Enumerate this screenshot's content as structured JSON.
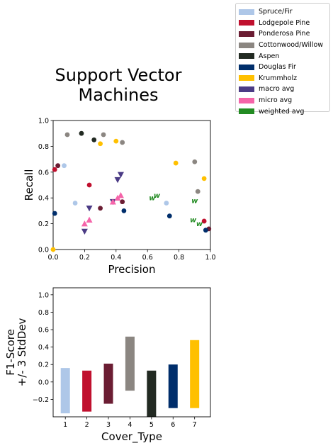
{
  "title_lines": [
    "Support Vector",
    "Machines"
  ],
  "colors": {
    "Spruce/Fir": "#aec7e8",
    "Lodgepole Pine": "#c0102e",
    "Ponderosa Pine": "#6b1d33",
    "Cottonwood/Willow": "#8b8681",
    "Aspen": "#222a22",
    "Douglas Fir": "#002e6b",
    "Krummholz": "#ffc000",
    "macro avg": "#4b3b85",
    "micro avg": "#f564a9",
    "weighted avg": "#228b22"
  },
  "legend": {
    "location": "upper-right-outside",
    "entries": [
      "Spruce/Fir",
      "Lodgepole Pine",
      "Ponderosa Pine",
      "Cottonwood/Willow",
      "Aspen",
      "Douglas Fir",
      "Krummholz",
      "macro avg",
      "micro avg",
      "weighted avg"
    ]
  },
  "chart_data": [
    {
      "type": "scatter",
      "xlabel": "Precision",
      "ylabel": "Recall",
      "xlim": [
        0,
        1
      ],
      "ylim": [
        0,
        1
      ],
      "xticks": [
        "0.0",
        "0.2",
        "0.4",
        "0.6",
        "0.8",
        "1.0"
      ],
      "yticks": [
        "0.0",
        "0.2",
        "0.4",
        "0.6",
        "0.8",
        "1.0"
      ],
      "grid": false,
      "series": [
        {
          "name": "Spruce/Fir",
          "marker": "circle",
          "points": [
            [
              0.07,
              0.65
            ],
            [
              0.14,
              0.36
            ],
            [
              0.72,
              0.36
            ]
          ]
        },
        {
          "name": "Lodgepole Pine",
          "marker": "circle",
          "points": [
            [
              0.01,
              0.62
            ],
            [
              0.23,
              0.5
            ],
            [
              0.96,
              0.22
            ]
          ]
        },
        {
          "name": "Ponderosa Pine",
          "marker": "circle",
          "points": [
            [
              0.03,
              0.65
            ],
            [
              0.3,
              0.32
            ],
            [
              0.44,
              0.37
            ],
            [
              0.99,
              0.16
            ]
          ]
        },
        {
          "name": "Cottonwood/Willow",
          "marker": "circle",
          "points": [
            [
              0.09,
              0.89
            ],
            [
              0.32,
              0.89
            ],
            [
              0.44,
              0.83
            ],
            [
              0.9,
              0.68
            ],
            [
              0.92,
              0.45
            ]
          ]
        },
        {
          "name": "Aspen",
          "marker": "circle",
          "points": [
            [
              0.18,
              0.9
            ],
            [
              0.26,
              0.85
            ]
          ]
        },
        {
          "name": "Douglas Fir",
          "marker": "circle",
          "points": [
            [
              0.01,
              0.28
            ],
            [
              0.45,
              0.3
            ],
            [
              0.74,
              0.26
            ],
            [
              0.97,
              0.15
            ]
          ]
        },
        {
          "name": "Krummholz",
          "marker": "circle",
          "points": [
            [
              0.0,
              0.0
            ],
            [
              0.3,
              0.82
            ],
            [
              0.4,
              0.84
            ],
            [
              0.78,
              0.67
            ],
            [
              0.96,
              0.55
            ]
          ]
        },
        {
          "name": "macro avg",
          "marker": "triangle-down",
          "points": [
            [
              0.2,
              0.14
            ],
            [
              0.23,
              0.32
            ],
            [
              0.38,
              0.37
            ],
            [
              0.41,
              0.54
            ],
            [
              0.43,
              0.58
            ]
          ]
        },
        {
          "name": "micro avg",
          "marker": "triangle-up",
          "points": [
            [
              0.2,
              0.2
            ],
            [
              0.23,
              0.23
            ],
            [
              0.38,
              0.37
            ],
            [
              0.41,
              0.4
            ],
            [
              0.43,
              0.42
            ]
          ]
        },
        {
          "name": "weighted avg",
          "marker": "w",
          "points": [
            [
              0.63,
              0.4
            ],
            [
              0.66,
              0.42
            ],
            [
              0.9,
              0.38
            ],
            [
              0.89,
              0.23
            ],
            [
              0.93,
              0.2
            ]
          ]
        }
      ]
    },
    {
      "type": "bar",
      "xlabel": "Cover_Type",
      "ylabel_lines": [
        "F1-Score",
        "+/- 3 StdDev"
      ],
      "categories": [
        "1",
        "2",
        "3",
        "4",
        "5",
        "6",
        "7"
      ],
      "bottoms": [
        -0.36,
        -0.34,
        -0.25,
        -0.1,
        -0.4,
        -0.3,
        -0.3
      ],
      "tops": [
        0.16,
        0.13,
        0.21,
        0.52,
        0.13,
        0.2,
        0.48
      ],
      "colors_by_category": [
        "Spruce/Fir",
        "Lodgepole Pine",
        "Ponderosa Pine",
        "Cottonwood/Willow",
        "Aspen",
        "Douglas Fir",
        "Krummholz"
      ],
      "ylim": [
        -0.4,
        1.08
      ],
      "yticks": [
        "−0.2",
        "0.0",
        "0.2",
        "0.4",
        "0.6",
        "0.8",
        "1.0"
      ],
      "ytick_values": [
        -0.2,
        0.0,
        0.2,
        0.4,
        0.6,
        0.8,
        1.0
      ]
    }
  ]
}
